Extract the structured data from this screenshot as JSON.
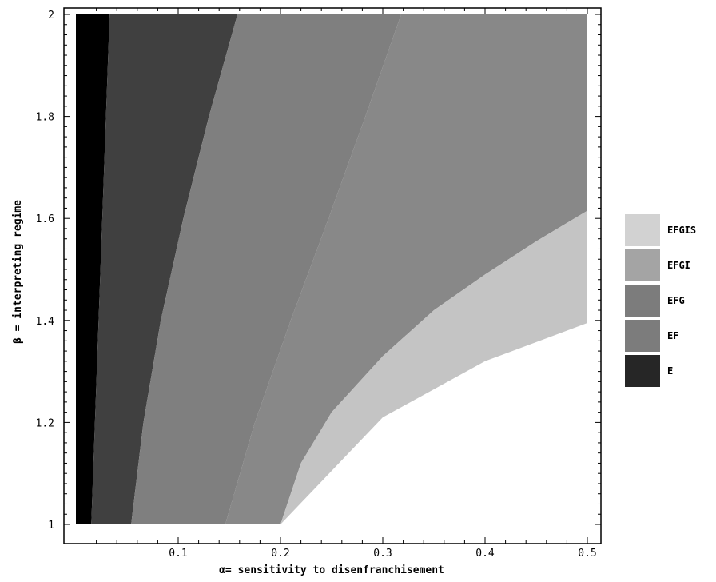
{
  "chart_data": {
    "type": "region-plot",
    "xlabel": "α= sensitivity to disenfranchisement",
    "ylabel": "β = interpreting regime",
    "xlim": [
      0.0,
      0.5
    ],
    "ylim": [
      1.0,
      2.0
    ],
    "x_ticks": [
      "0.1",
      "0.2",
      "0.3",
      "0.4",
      "0.5"
    ],
    "x_tick_values": [
      0.1,
      0.2,
      0.3,
      0.4,
      0.5
    ],
    "y_ticks": [
      "1",
      "1.2",
      "1.4",
      "1.6",
      "1.8",
      "2"
    ],
    "y_tick_values": [
      1.0,
      1.2,
      1.4,
      1.6,
      1.8,
      2.0
    ],
    "legend_position": "right",
    "legend": [
      {
        "label": "EFGIS",
        "color": "#d2d2d2"
      },
      {
        "label": "EFGI",
        "color": "#a4a4a4"
      },
      {
        "label": "EFG",
        "color": "#7c7c7c"
      },
      {
        "label": "EF",
        "color": "#7c7c7c"
      },
      {
        "label": "E",
        "color": "#262626"
      }
    ],
    "regions": [
      {
        "name": "black",
        "color": "#000000",
        "boundary": [
          [
            0.015,
            1.0
          ],
          [
            0.033,
            2.0
          ]
        ]
      },
      {
        "name": "dark",
        "color": "#404040",
        "boundary": [
          [
            0.054,
            1.0
          ],
          [
            0.066,
            1.2
          ],
          [
            0.083,
            1.4
          ],
          [
            0.105,
            1.6
          ],
          [
            0.13,
            1.8
          ],
          [
            0.158,
            2.0
          ]
        ]
      },
      {
        "name": "grey",
        "color": "#7f7f7f",
        "boundary": [
          [
            0.146,
            1.0
          ],
          [
            0.175,
            1.2
          ],
          [
            0.21,
            1.4
          ],
          [
            0.247,
            1.6
          ],
          [
            0.283,
            1.8
          ],
          [
            0.318,
            2.0
          ]
        ]
      },
      {
        "name": "light",
        "color": "#c4c4c4",
        "boundary": [
          [
            0.2,
            1.0
          ],
          [
            0.3,
            1.21
          ],
          [
            0.4,
            1.32
          ],
          [
            0.5,
            1.395
          ]
        ]
      },
      {
        "name": "upper",
        "color": "#888888",
        "boundary": [
          [
            0.5,
            1.615
          ],
          [
            0.45,
            1.555
          ],
          [
            0.4,
            1.49
          ],
          [
            0.35,
            1.42
          ],
          [
            0.3,
            1.33
          ],
          [
            0.25,
            1.22
          ],
          [
            0.22,
            1.12
          ],
          [
            0.2,
            1.0
          ]
        ]
      }
    ]
  }
}
